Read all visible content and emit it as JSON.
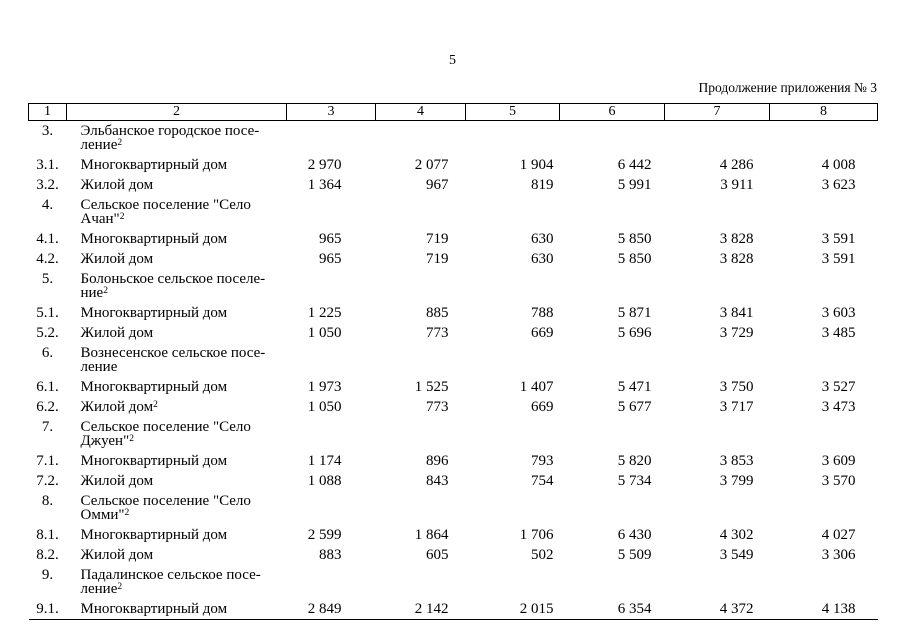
{
  "page": {
    "number": "5",
    "continuation": "Продолжение приложения № 3"
  },
  "table": {
    "headers": [
      "1",
      "2",
      "3",
      "4",
      "5",
      "6",
      "7",
      "8"
    ],
    "rows": [
      {
        "num": "3.",
        "name": "Эльбанское городское посе-\nление",
        "sup": "2",
        "values": [
          "",
          "",
          "",
          "",
          "",
          ""
        ]
      },
      {
        "num": "3.1.",
        "name": "Многоквартирный дом",
        "sup": "",
        "values": [
          "2 970",
          "2 077",
          "1 904",
          "6 442",
          "4 286",
          "4 008"
        ]
      },
      {
        "num": "3.2.",
        "name": "Жилой дом",
        "sup": "",
        "values": [
          "1 364",
          "967",
          "819",
          "5 991",
          "3 911",
          "3 623"
        ]
      },
      {
        "num": "4.",
        "name": "Сельское поселение \"Село\nАчан\"",
        "sup": "2",
        "values": [
          "",
          "",
          "",
          "",
          "",
          ""
        ]
      },
      {
        "num": "4.1.",
        "name": "Многоквартирный дом",
        "sup": "",
        "values": [
          "965",
          "719",
          "630",
          "5 850",
          "3 828",
          "3 591"
        ]
      },
      {
        "num": "4.2.",
        "name": "Жилой дом",
        "sup": "",
        "values": [
          "965",
          "719",
          "630",
          "5 850",
          "3 828",
          "3 591"
        ]
      },
      {
        "num": "5.",
        "name": "Болоньское сельское поселе-\nние",
        "sup": "2",
        "values": [
          "",
          "",
          "",
          "",
          "",
          ""
        ]
      },
      {
        "num": "5.1.",
        "name": "Многоквартирный дом",
        "sup": "",
        "values": [
          "1 225",
          "885",
          "788",
          "5 871",
          "3 841",
          "3 603"
        ]
      },
      {
        "num": "5.2.",
        "name": "Жилой дом",
        "sup": "",
        "values": [
          "1 050",
          "773",
          "669",
          "5 696",
          "3 729",
          "3 485"
        ]
      },
      {
        "num": "6.",
        "name": "Вознесенское сельское посе-\nление",
        "sup": "",
        "values": [
          "",
          "",
          "",
          "",
          "",
          ""
        ]
      },
      {
        "num": "6.1.",
        "name": "Многоквартирный дом",
        "sup": "",
        "values": [
          "1 973",
          "1 525",
          "1 407",
          "5 471",
          "3 750",
          "3 527"
        ]
      },
      {
        "num": "6.2.",
        "name": "Жилой дом",
        "sup": "2",
        "values": [
          "1 050",
          "773",
          "669",
          "5 677",
          "3 717",
          "3 473"
        ]
      },
      {
        "num": "7.",
        "name": "Сельское поселение \"Село\nДжуен\"",
        "sup": "2",
        "values": [
          "",
          "",
          "",
          "",
          "",
          ""
        ]
      },
      {
        "num": "7.1.",
        "name": "Многоквартирный дом",
        "sup": "",
        "values": [
          "1 174",
          "896",
          "793",
          "5 820",
          "3 853",
          "3 609"
        ]
      },
      {
        "num": "7.2.",
        "name": "Жилой дом",
        "sup": "",
        "values": [
          "1 088",
          "843",
          "754",
          "5 734",
          "3 799",
          "3 570"
        ]
      },
      {
        "num": "8.",
        "name": "Сельское поселение \"Село\nОмми\"",
        "sup": "2",
        "values": [
          "",
          "",
          "",
          "",
          "",
          ""
        ]
      },
      {
        "num": "8.1.",
        "name": "Многоквартирный дом",
        "sup": "",
        "values": [
          "2 599",
          "1 864",
          "1 706",
          "6 430",
          "4 302",
          "4 027"
        ]
      },
      {
        "num": "8.2.",
        "name": "Жилой дом",
        "sup": "",
        "values": [
          "883",
          "605",
          "502",
          "5 509",
          "3 549",
          "3 306"
        ]
      },
      {
        "num": "9.",
        "name": "Падалинское сельское посе-\nление",
        "sup": "2",
        "values": [
          "",
          "",
          "",
          "",
          "",
          ""
        ]
      },
      {
        "num": "9.1.",
        "name": "Многоквартирный дом",
        "sup": "",
        "values": [
          "2 849",
          "2 142",
          "2 015",
          "6 354",
          "4 372",
          "4 138"
        ]
      }
    ]
  }
}
